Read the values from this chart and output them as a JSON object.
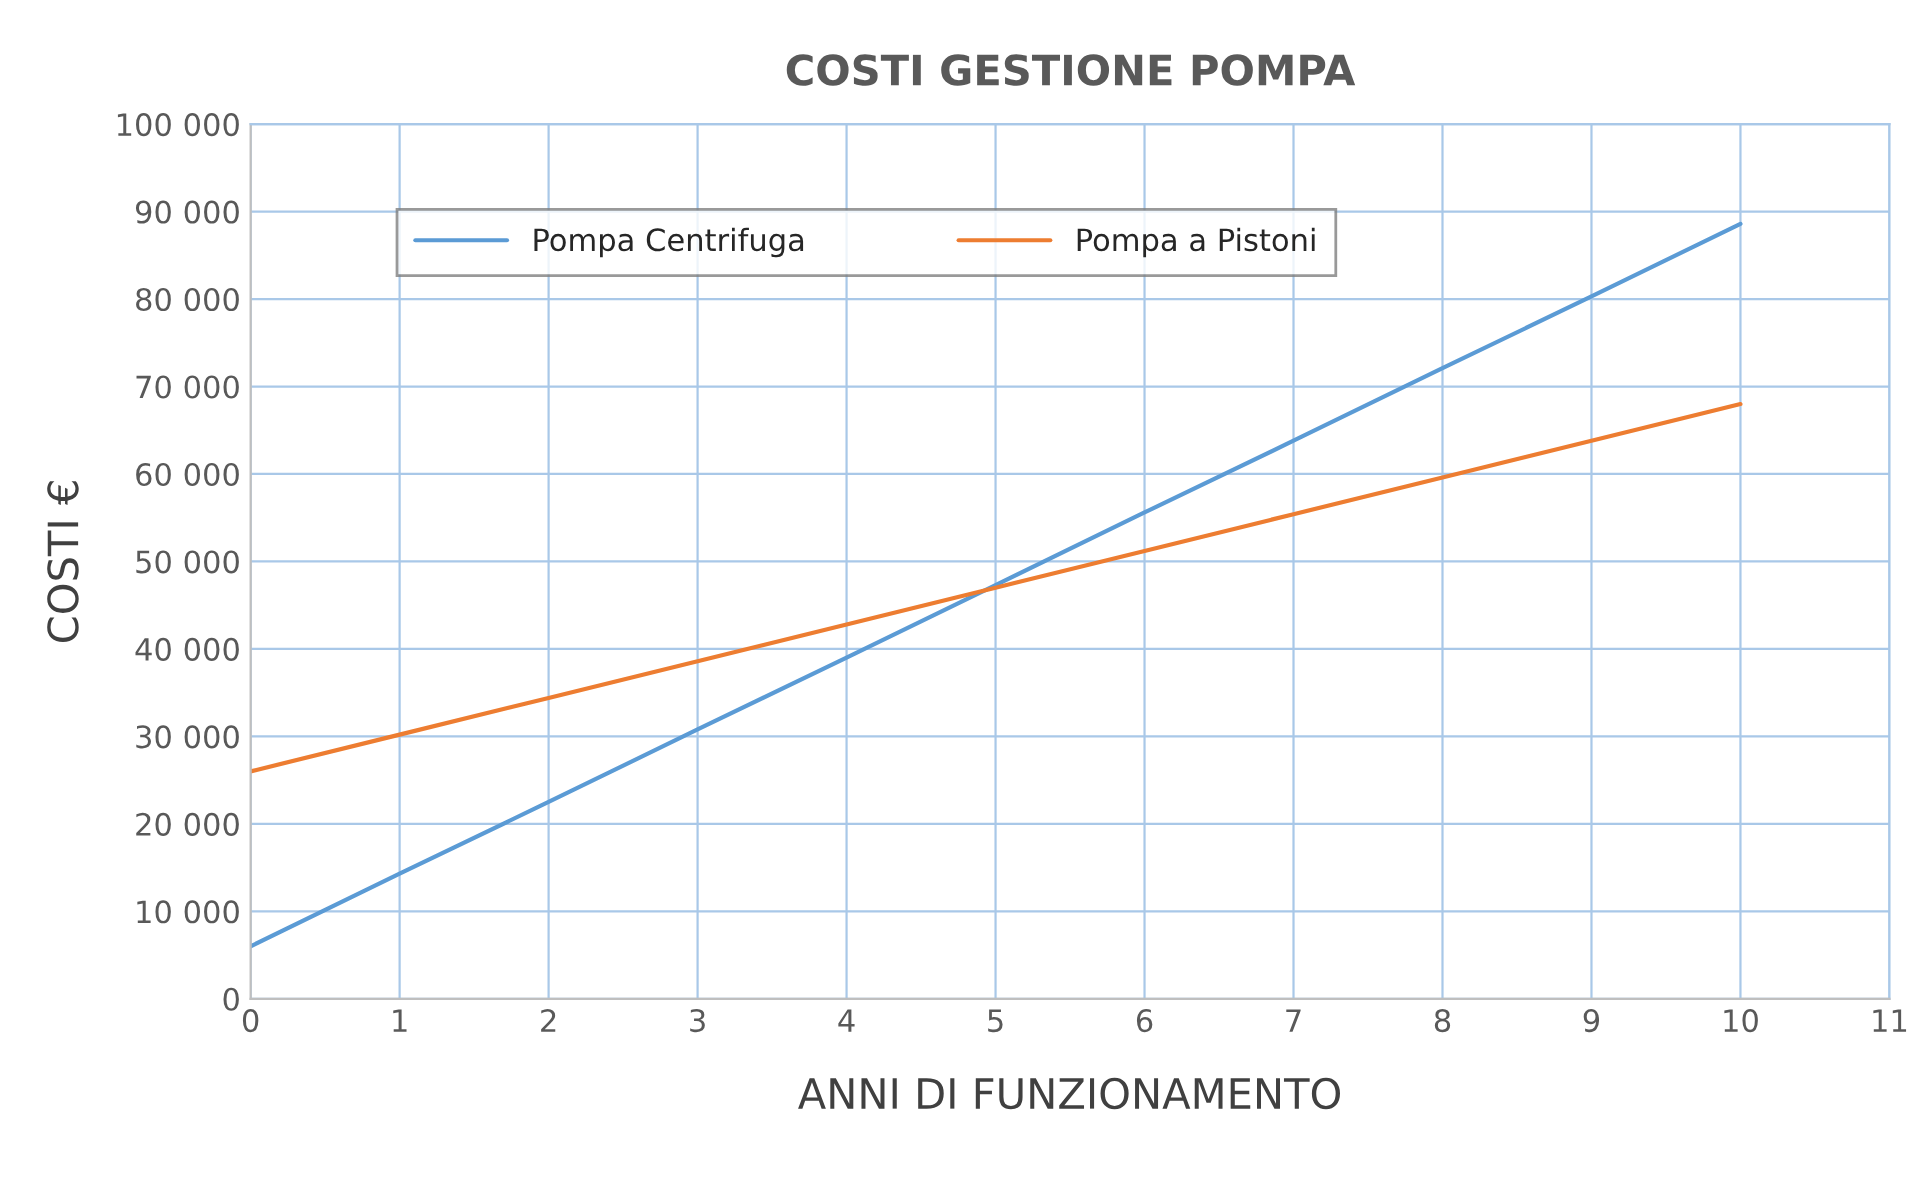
{
  "chart_data": {
    "type": "line",
    "title": "COSTI GESTIONE POMPA",
    "xlabel": "ANNI DI FUNZIONAMENTO",
    "ylabel": "COSTI €",
    "x": [
      0,
      1,
      2,
      3,
      4,
      5,
      6,
      7,
      8,
      9,
      10
    ],
    "series": [
      {
        "name": "Pompa Centrifuga",
        "color": "#5b9bd5",
        "values": [
          6000,
          14300,
          22500,
          30800,
          39000,
          47300,
          55600,
          63800,
          72100,
          80300,
          88600
        ]
      },
      {
        "name": "Pompa a Pistoni",
        "color": "#ed7d31",
        "values": [
          26000,
          30200,
          34400,
          38600,
          42800,
          47000,
          51200,
          55400,
          59600,
          63800,
          68000
        ]
      }
    ],
    "xlim": [
      0,
      11
    ],
    "xticks": [
      0,
      1,
      2,
      3,
      4,
      5,
      6,
      7,
      8,
      9,
      10,
      11
    ],
    "ylim": [
      0,
      100000
    ],
    "yticks": [
      {
        "value": 0,
        "label": "0"
      },
      {
        "value": 10000,
        "label": "10 000"
      },
      {
        "value": 20000,
        "label": "20 000"
      },
      {
        "value": 30000,
        "label": "30 000"
      },
      {
        "value": 40000,
        "label": "40 000"
      },
      {
        "value": 50000,
        "label": "50 000"
      },
      {
        "value": 60000,
        "label": "60 000"
      },
      {
        "value": 70000,
        "label": "70 000"
      },
      {
        "value": 80000,
        "label": "80 000"
      },
      {
        "value": 90000,
        "label": "90 000"
      },
      {
        "value": 100000,
        "label": "100 000"
      }
    ],
    "grid": true,
    "legend": "top left",
    "marker": "none",
    "line_style": "solid"
  }
}
